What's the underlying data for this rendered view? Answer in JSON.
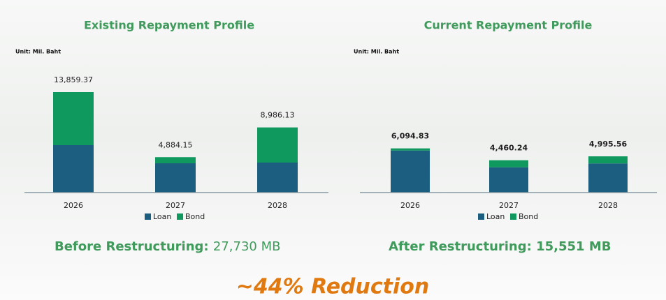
{
  "chart_data": [
    {
      "type": "bar",
      "stacked": true,
      "title": "Existing Repayment Profile",
      "unit": "Unit: Mil. Baht",
      "categories": [
        "2026",
        "2027",
        "2028"
      ],
      "series": [
        {
          "name": "Loan",
          "color": "#1b5e7f",
          "values": [
            6545,
            4040,
            4137
          ]
        },
        {
          "name": "Bond",
          "color": "#10995f",
          "values": [
            7314.37,
            844.15,
            4849.13
          ]
        }
      ],
      "totals": [
        13859.37,
        4884.15,
        8986.13
      ],
      "total_labels": [
        "13,859.37",
        "4,884.15",
        "8,986.13"
      ]
    },
    {
      "type": "bar",
      "stacked": true,
      "title": "Current Repayment Profile",
      "unit": "Unit: Mil. Baht",
      "categories": [
        "2026",
        "2027",
        "2028"
      ],
      "series": [
        {
          "name": "Loan",
          "color": "#1b5e7f",
          "values": [
            5800,
            3480,
            4020
          ]
        },
        {
          "name": "Bond",
          "color": "#10995f",
          "values": [
            294.83,
            980.24,
            975.56
          ]
        }
      ],
      "totals": [
        6094.83,
        4460.24,
        4995.56
      ],
      "total_labels": [
        "6,094.83",
        "4,460.24",
        "4,995.56"
      ]
    }
  ],
  "summary": {
    "before_label": "Before Restructuring:",
    "before_value": "27,730 MB",
    "after_label": "After Restructuring:",
    "after_value": "15,551 MB",
    "reduction": "~44% Reduction"
  }
}
